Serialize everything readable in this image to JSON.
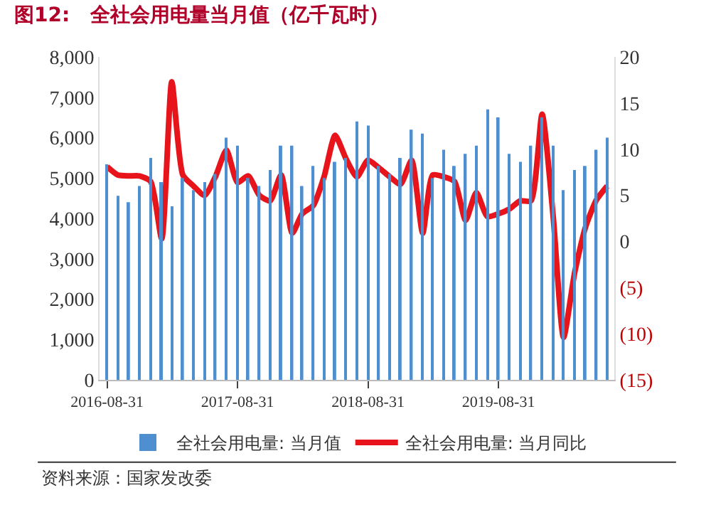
{
  "chart_data": {
    "type": "bar",
    "title": "图12:   全社会用电量当月值（亿千瓦时）",
    "x": [
      "2016-08-31",
      "2016-09-30",
      "2016-10-31",
      "2016-11-30",
      "2016-12-31",
      "2017-01-31",
      "2017-02-28",
      "2017-03-31",
      "2017-04-30",
      "2017-05-31",
      "2017-06-30",
      "2017-07-31",
      "2017-08-31",
      "2017-09-30",
      "2017-10-31",
      "2017-11-30",
      "2017-12-31",
      "2018-01-31",
      "2018-02-28",
      "2018-03-31",
      "2018-04-30",
      "2018-05-31",
      "2018-06-30",
      "2018-07-31",
      "2018-08-31",
      "2018-09-30",
      "2018-10-31",
      "2018-11-30",
      "2018-12-31",
      "2019-01-31",
      "2019-02-28",
      "2019-03-31",
      "2019-04-30",
      "2019-05-31",
      "2019-06-30",
      "2019-07-31",
      "2019-08-31",
      "2019-09-30",
      "2019-10-31",
      "2019-11-30",
      "2019-12-31",
      "2020-01-31",
      "2020-02-29",
      "2020-03-31",
      "2020-04-30",
      "2020-05-31",
      "2020-06-30"
    ],
    "series": [
      {
        "name": "全社会用电量: 当月值",
        "color": "#4f8fd0",
        "values": [
          5340,
          4560,
          4400,
          4800,
          5500,
          4900,
          4300,
          5000,
          4700,
          4900,
          5100,
          6000,
          5800,
          5000,
          4800,
          5200,
          5800,
          5800,
          4800,
          5300,
          5000,
          5400,
          5500,
          6400,
          6300,
          5300,
          5100,
          5500,
          6200,
          6100,
          5000,
          5700,
          5300,
          5600,
          5800,
          6700,
          6500,
          5600,
          5400,
          5800,
          6500,
          5800,
          4700,
          5200,
          5300,
          5700,
          6000
        ]
      },
      {
        "name": "全社会用电量: 当月同比",
        "type": "line",
        "axis": "y2",
        "color": "#e8141b",
        "line_style": "solid",
        "values": [
          8.1,
          7.2,
          7.1,
          7.1,
          6.5,
          0.3,
          17.3,
          7.2,
          6.0,
          5.0,
          7.0,
          9.9,
          6.4,
          7.1,
          5.0,
          4.4,
          7.2,
          0.9,
          3.0,
          3.9,
          7.0,
          11.5,
          9.0,
          7.0,
          8.8,
          8.0,
          7.0,
          6.2,
          8.8,
          0.9,
          7.2,
          7.0,
          6.5,
          2.3,
          5.3,
          2.7,
          3.0,
          3.5,
          4.4,
          4.4,
          13.8,
          2.7,
          -10.4,
          -3.4,
          1.5,
          4.5,
          6.0
        ]
      }
    ],
    "xlim": [
      "2016-08-10",
      "2020-07-20"
    ],
    "xticks": [
      {
        "value": "2016-08-31",
        "label": "2016-08-31"
      },
      {
        "value": "2017-08-31",
        "label": "2017-08-31"
      },
      {
        "value": "2018-08-31",
        "label": "2018-08-31"
      },
      {
        "value": "2019-08-31",
        "label": "2019-08-31"
      }
    ],
    "ylim": [
      0,
      8000
    ],
    "yticks": [
      0,
      {
        "value": 1000,
        "label": "1,000"
      },
      {
        "value": 2000,
        "label": "2,000"
      },
      {
        "value": 3000,
        "label": "3,000"
      },
      {
        "value": 4000,
        "label": "4,000"
      },
      {
        "value": 5000,
        "label": "5,000"
      },
      {
        "value": 6000,
        "label": "6,000"
      },
      {
        "value": 7000,
        "label": "7,000"
      },
      {
        "value": 8000,
        "label": "8,000"
      }
    ],
    "y2lim": [
      -15,
      20
    ],
    "y2ticks": [
      20,
      15,
      10,
      5,
      0,
      {
        "value": -5,
        "label": "(5)"
      },
      {
        "value": -10,
        "label": "(10)"
      },
      {
        "value": -15,
        "label": "(15)"
      }
    ],
    "legend": "bottom",
    "marker": "none",
    "annotations": [
      "资料来源：国家发改委"
    ]
  }
}
